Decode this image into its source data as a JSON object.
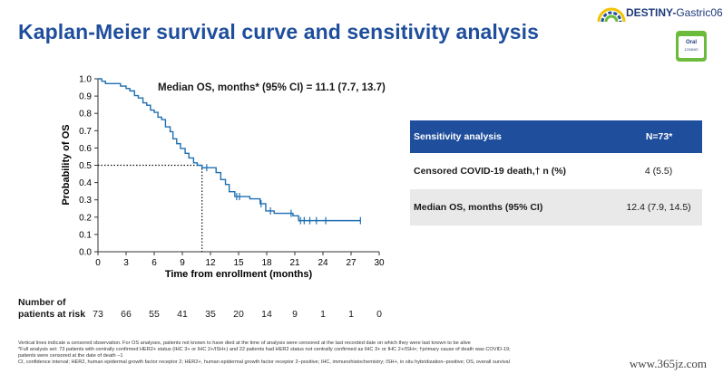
{
  "title": "Kaplan-Meier survival curve and sensitivity analysis",
  "brand": {
    "name": "DESTINY-",
    "name_light": "Gastric06",
    "badge_line1": "Oral",
    "badge_line2": "1234MO",
    "accent": "#1f4e9c",
    "badge_color": "#6dbb3d"
  },
  "chart_data": {
    "type": "line",
    "title": "",
    "xlabel": "Time from enrollment (months)",
    "ylabel": "Probability of OS",
    "xlim": [
      0,
      30
    ],
    "ylim": [
      0,
      1.0
    ],
    "xticks": [
      "0",
      "3",
      "6",
      "9",
      "12",
      "15",
      "18",
      "21",
      "24",
      "27",
      "30"
    ],
    "yticks": [
      "0.0",
      "0.1",
      "0.2",
      "0.3",
      "0.4",
      "0.5",
      "0.6",
      "0.7",
      "0.8",
      "0.9",
      "1.0"
    ],
    "annotation": "Median OS, months* (95% CI) = 11.1 (7.7, 13.7)",
    "median": {
      "x": 11.1,
      "y": 0.5
    },
    "series": [
      {
        "color": "#1f6fb2",
        "points": [
          [
            0,
            1.0
          ],
          [
            0.4,
            0.986
          ],
          [
            0.8,
            0.972
          ],
          [
            1.4,
            0.972
          ],
          [
            2.4,
            0.958
          ],
          [
            3.0,
            0.944
          ],
          [
            3.4,
            0.93
          ],
          [
            3.9,
            0.903
          ],
          [
            4.3,
            0.889
          ],
          [
            4.8,
            0.861
          ],
          [
            5.2,
            0.847
          ],
          [
            5.6,
            0.819
          ],
          [
            6.0,
            0.806
          ],
          [
            6.4,
            0.778
          ],
          [
            6.8,
            0.764
          ],
          [
            7.2,
            0.722
          ],
          [
            7.7,
            0.694
          ],
          [
            8.0,
            0.653
          ],
          [
            8.4,
            0.625
          ],
          [
            8.8,
            0.597
          ],
          [
            9.3,
            0.569
          ],
          [
            9.7,
            0.542
          ],
          [
            10.2,
            0.514
          ],
          [
            10.6,
            0.5
          ],
          [
            11.1,
            0.486
          ],
          [
            12.0,
            0.486
          ],
          [
            12.6,
            0.458
          ],
          [
            13.1,
            0.417
          ],
          [
            13.6,
            0.389
          ],
          [
            14.0,
            0.347
          ],
          [
            14.6,
            0.319
          ],
          [
            16.2,
            0.306
          ],
          [
            17.3,
            0.278
          ],
          [
            17.9,
            0.236
          ],
          [
            18.8,
            0.222
          ],
          [
            20.8,
            0.208
          ],
          [
            21.4,
            0.18
          ],
          [
            28.0,
            0.18
          ]
        ],
        "censored": [
          [
            11.6,
            0.486
          ],
          [
            14.8,
            0.319
          ],
          [
            15.1,
            0.319
          ],
          [
            17.4,
            0.278
          ],
          [
            18.4,
            0.236
          ],
          [
            20.6,
            0.222
          ],
          [
            21.6,
            0.18
          ],
          [
            22.0,
            0.18
          ],
          [
            22.6,
            0.18
          ],
          [
            23.3,
            0.18
          ],
          [
            24.3,
            0.18
          ],
          [
            28.0,
            0.18
          ]
        ]
      }
    ]
  },
  "risk_table": {
    "label_line1": "Number of",
    "label_line2": "patients at risk",
    "times": [
      0,
      3,
      6,
      9,
      12,
      15,
      18,
      21,
      24,
      27,
      30
    ],
    "counts": [
      "73",
      "66",
      "55",
      "41",
      "35",
      "20",
      "14",
      "9",
      "1",
      "1",
      "0"
    ]
  },
  "sensitivity": {
    "header": [
      "Sensitivity analysis",
      "N=73*"
    ],
    "rows": [
      [
        "Censored COVID-19 death,† n (%)",
        "4 (5.5)"
      ],
      [
        "Median OS, months (95% CI)",
        "12.4 (7.9, 14.5)"
      ]
    ]
  },
  "footnotes": [
    "Vertical lines indicate a censored observation. For OS analyses, patients not known to have died at the time of analysis were censored at the last recorded date on which they were last known to be alive",
    "*Full analysis set: 73 patients with centrally confirmed HER2+ status (IHC 3+ or IHC 2+/ISH+) and 22 patients had HER2 status not centrally confirmed as IHC 3+ or IHC 2+/ISH+; †primary cause of death was COVID-19;",
    "patients were censored at the date of death −1",
    "CI, confidence interval; HER2, human epidermal growth factor receptor 2; HER2+, human epidermal growth factor receptor 2–positive; IHC, immunohistochemistry; ISH+, in situ hybridization–positive; OS, overall survival"
  ],
  "watermark": "www.365jz.com"
}
